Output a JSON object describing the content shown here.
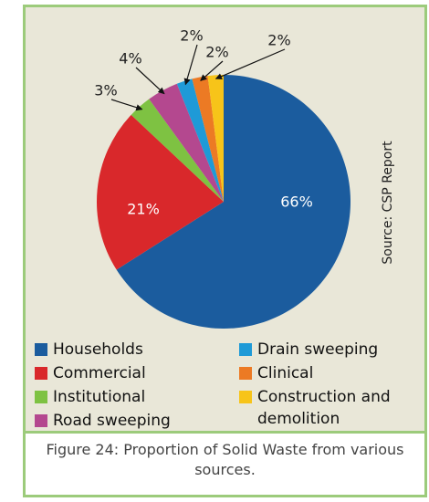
{
  "chart_data": {
    "type": "pie",
    "categories": [
      "Households",
      "Commercial",
      "Institutional",
      "Road sweeping",
      "Drain sweeping",
      "Clinical",
      "Construction and demolition"
    ],
    "values": [
      66,
      21,
      3,
      4,
      2,
      2,
      2
    ],
    "value_labels": [
      "66%",
      "21%",
      "3%",
      "4%",
      "2%",
      "2%",
      "2%"
    ],
    "colors": [
      "#1b5c9e",
      "#d9282b",
      "#7ec242",
      "#b4488f",
      "#1f9ad7",
      "#ec7a24",
      "#f7c419"
    ],
    "source": "Source: CSP Report",
    "caption": "Figure 24: Proportion of Solid Waste from various sources."
  }
}
